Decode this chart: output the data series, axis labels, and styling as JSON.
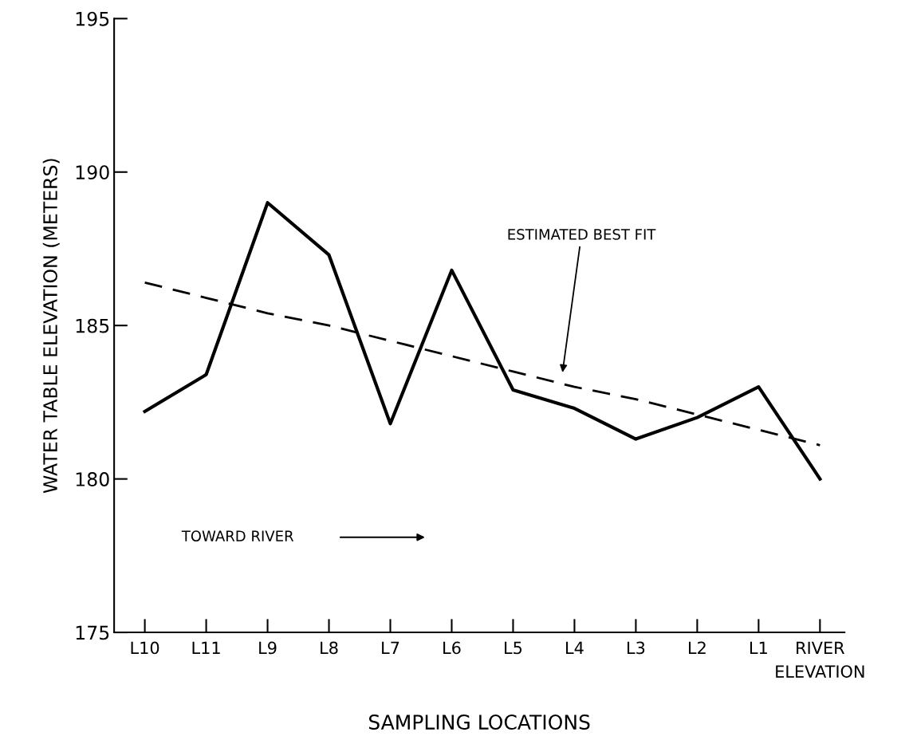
{
  "chart_data": {
    "type": "line",
    "xlabel": "SAMPLING LOCATIONS",
    "ylabel": "WATER TABLE ELEVATION (METERS)",
    "categories": [
      "L10",
      "L11",
      "L9",
      "L8",
      "L7",
      "L6",
      "L5",
      "L4",
      "L3",
      "L2",
      "L1",
      "RIVER\nELEVATION"
    ],
    "series": [
      {
        "color": "#000000",
        "line_style": "solid",
        "values": [
          182.2,
          183.4,
          189.0,
          187.3,
          181.8,
          186.8,
          182.9,
          182.3,
          181.3,
          182.0,
          183.0,
          180.0
        ]
      },
      {
        "color": "#000000",
        "line_style": "dashed",
        "values": [
          186.4,
          185.9,
          185.4,
          185.0,
          184.5,
          184.0,
          183.5,
          183.0,
          182.6,
          182.1,
          181.6,
          181.1
        ]
      }
    ],
    "ylim": [
      175,
      195
    ],
    "yticks": [
      175,
      180,
      185,
      190,
      195
    ],
    "grid": false,
    "legend": false,
    "annotations": [
      "ESTIMATED BEST FIT",
      "TOWARD RIVER"
    ]
  }
}
